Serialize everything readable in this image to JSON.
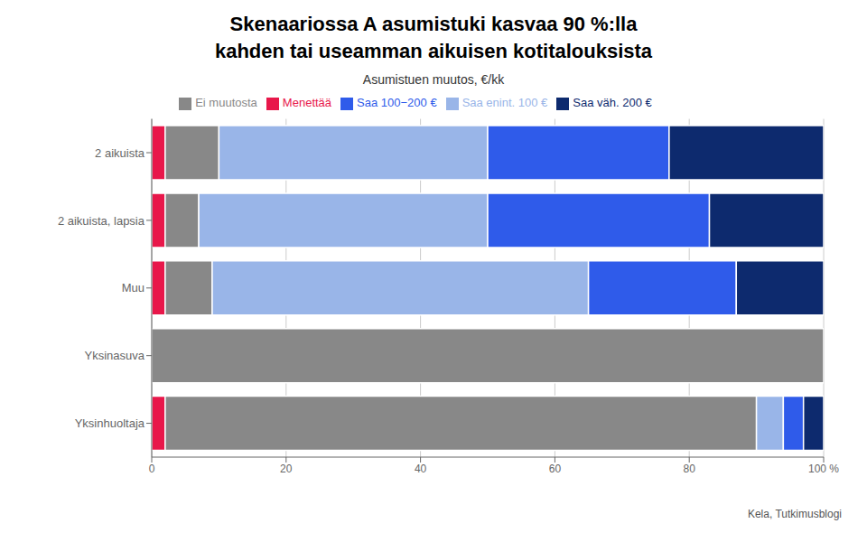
{
  "chart_data": {
    "type": "bar",
    "orientation": "horizontal",
    "stacked": true,
    "title": "Skenaariossa A asumistuki kasvaa 90 %:lla\nkahden tai useamman aikuisen kotitalouksista",
    "subtitle": "Asumistuen muutos, €/kk",
    "annotations": [
      "Kela, Tutkimusblogi"
    ],
    "categories": [
      "2 aikuista",
      "2 aikuista, lapsia",
      "Muu",
      "Yksinasuva",
      "Yksinhuoltaja"
    ],
    "series": [
      {
        "name": "Menettää",
        "color": "#e8174a",
        "values": [
          2,
          2,
          2,
          0,
          2
        ]
      },
      {
        "name": "Ei muutosta",
        "color": "#888888",
        "values": [
          8,
          5,
          7,
          100,
          88
        ]
      },
      {
        "name": "Saa enint. 100 €",
        "color": "#99b5e8",
        "values": [
          40,
          43,
          56,
          0,
          4
        ]
      },
      {
        "name": "Saa 100−200 €",
        "color": "#2f5bea",
        "values": [
          27,
          33,
          22,
          0,
          3
        ]
      },
      {
        "name": "Saa väh. 200 €",
        "color": "#0d2a6e",
        "values": [
          23,
          17,
          13,
          0,
          3
        ]
      }
    ],
    "xlim": [
      0,
      100
    ],
    "xticks": [
      0,
      20,
      40,
      60,
      80,
      {
        "value": 100,
        "label": "100 %"
      }
    ],
    "grid": true,
    "legend": "top"
  }
}
